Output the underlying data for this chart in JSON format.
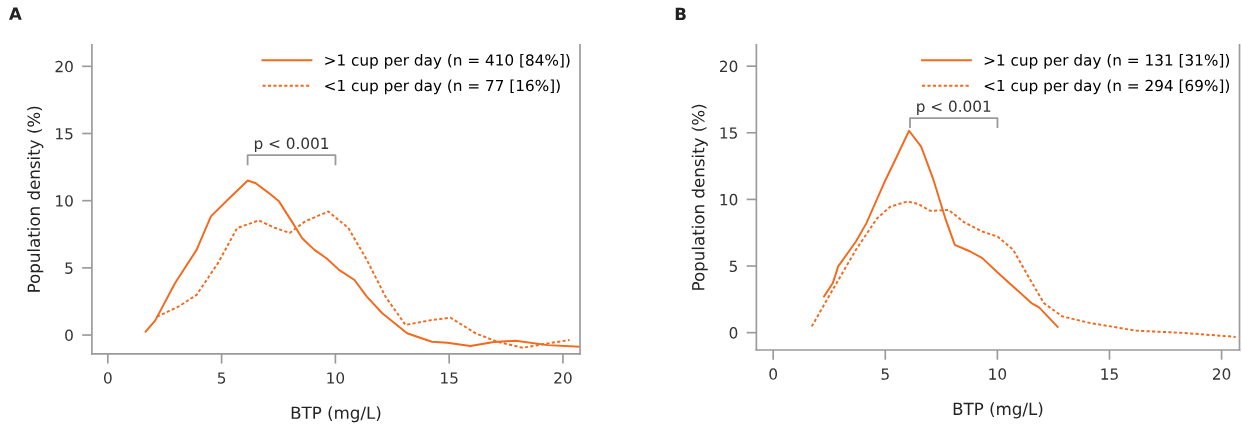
{
  "chart_data": [
    {
      "type": "line",
      "title": "A",
      "xlabel": "BTP (mg/L)",
      "ylabel": "Population density (%)",
      "xlim": [
        -0.7,
        20.75
      ],
      "ylim": [
        -1.4,
        21.6
      ],
      "xticks": [
        0,
        5,
        10,
        15,
        20
      ],
      "yticks": [
        0,
        5,
        10,
        15,
        20
      ],
      "grid": false,
      "legend": "top right",
      "annotations": [
        "p < 0.001"
      ],
      "series": [
        {
          "name": ">1 cup per day (n = 410 [84%])",
          "color": "#f26a1e",
          "line_style": "solid",
          "x": [
            1.66,
            2.08,
            2.95,
            3.9,
            4.53,
            5.27,
            6.15,
            6.5,
            7.05,
            7.52,
            8.13,
            8.54,
            9.08,
            9.62,
            10.16,
            10.84,
            11.38,
            12.06,
            13.15,
            14.24,
            14.92,
            15.93,
            16.97,
            17.92,
            19.34,
            20.7
          ],
          "values": [
            0.25,
            1.07,
            3.86,
            6.34,
            8.83,
            10.07,
            11.5,
            11.3,
            10.6,
            9.95,
            8.33,
            7.2,
            6.34,
            5.7,
            4.85,
            4.1,
            2.86,
            1.62,
            0.13,
            -0.5,
            -0.57,
            -0.82,
            -0.52,
            -0.42,
            -0.75,
            -0.87
          ]
        },
        {
          "name": "<1 cup per day (n = 77 [16%])",
          "color": "#f26a1e",
          "line_style": "dotted",
          "x": [
            2.16,
            3.1,
            3.9,
            4.84,
            5.68,
            6.63,
            7.31,
            7.99,
            8.67,
            9.69,
            10.57,
            11.38,
            12.2,
            13.08,
            14.24,
            15.06,
            16.17,
            17.12,
            18.23,
            19.34,
            20.29
          ],
          "values": [
            1.37,
            2.11,
            2.99,
            5.35,
            7.96,
            8.53,
            8.0,
            7.6,
            8.46,
            9.2,
            7.96,
            5.6,
            2.86,
            0.75,
            1.12,
            1.29,
            0.12,
            -0.5,
            -0.95,
            -0.62,
            -0.37
          ]
        }
      ]
    },
    {
      "type": "line",
      "title": "B",
      "xlabel": "BTP (mg/L)",
      "ylabel": "Population density (%)",
      "xlim": [
        -0.75,
        20.8
      ],
      "ylim": [
        -1.3,
        21.6
      ],
      "xticks": [
        0,
        5,
        10,
        15,
        20
      ],
      "yticks": [
        0,
        5,
        10,
        15,
        20
      ],
      "grid": false,
      "legend": "top right",
      "annotations": [
        "p < 0.001"
      ],
      "series": [
        {
          "name": ">1 cup per day (n = 131 [31%])",
          "color": "#f26a1e",
          "line_style": "solid",
          "x": [
            2.27,
            2.66,
            2.9,
            3.69,
            4.16,
            4.94,
            5.51,
            6.06,
            6.6,
            7.15,
            7.7,
            8.1,
            8.79,
            9.33,
            10.01,
            10.7,
            11.52,
            11.86,
            12.69
          ],
          "values": [
            2.72,
            3.72,
            4.97,
            6.84,
            8.22,
            11.21,
            13.2,
            15.15,
            13.96,
            11.46,
            8.46,
            6.59,
            6.09,
            5.59,
            4.52,
            3.47,
            2.22,
            1.9,
            0.43
          ]
        },
        {
          "name": "<1 cup per day (n = 294 [69%])",
          "color": "#f26a1e",
          "line_style": "dotted",
          "x": [
            1.72,
            2.74,
            3.69,
            4.64,
            5.23,
            5.98,
            6.46,
            7.01,
            7.83,
            8.51,
            9.33,
            10.01,
            10.7,
            11.38,
            12.07,
            12.89,
            14.12,
            16.17,
            18.3,
            20.63
          ],
          "values": [
            0.47,
            3.47,
            6.22,
            8.59,
            9.46,
            9.84,
            9.66,
            9.14,
            9.21,
            8.29,
            7.59,
            7.21,
            6.22,
            4.22,
            2.22,
            1.22,
            0.73,
            0.15,
            -0.02,
            -0.32
          ]
        }
      ]
    }
  ]
}
